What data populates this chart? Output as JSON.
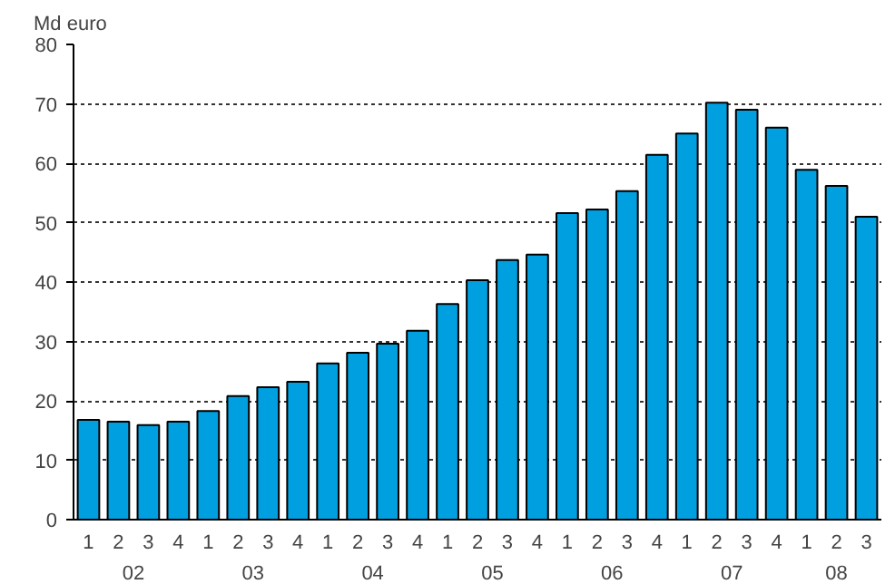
{
  "chart_data": {
    "type": "bar",
    "ylabel": "Md euro",
    "categories": [
      "1",
      "2",
      "3",
      "4",
      "1",
      "2",
      "3",
      "4",
      "1",
      "2",
      "3",
      "4",
      "1",
      "2",
      "3",
      "4",
      "1",
      "2",
      "3",
      "4",
      "1",
      "2",
      "3",
      "4",
      "1",
      "2",
      "3"
    ],
    "values": [
      16.8,
      16.5,
      15.9,
      16.5,
      18.3,
      20.8,
      22.3,
      23.2,
      26.3,
      28.1,
      29.6,
      31.8,
      36.3,
      40.3,
      43.7,
      44.6,
      51.6,
      52.2,
      55.3,
      61.4,
      65.0,
      70.2,
      69.0,
      66.0,
      58.9,
      56.2,
      51.0
    ],
    "color": "#00a0e0",
    "ylim": [
      0,
      80
    ],
    "yticks": [
      0,
      10,
      20,
      30,
      40,
      50,
      60,
      70,
      80
    ],
    "grid": "y",
    "annotations": [
      "02",
      "03",
      "04",
      "05",
      "06",
      "07",
      "08"
    ]
  }
}
